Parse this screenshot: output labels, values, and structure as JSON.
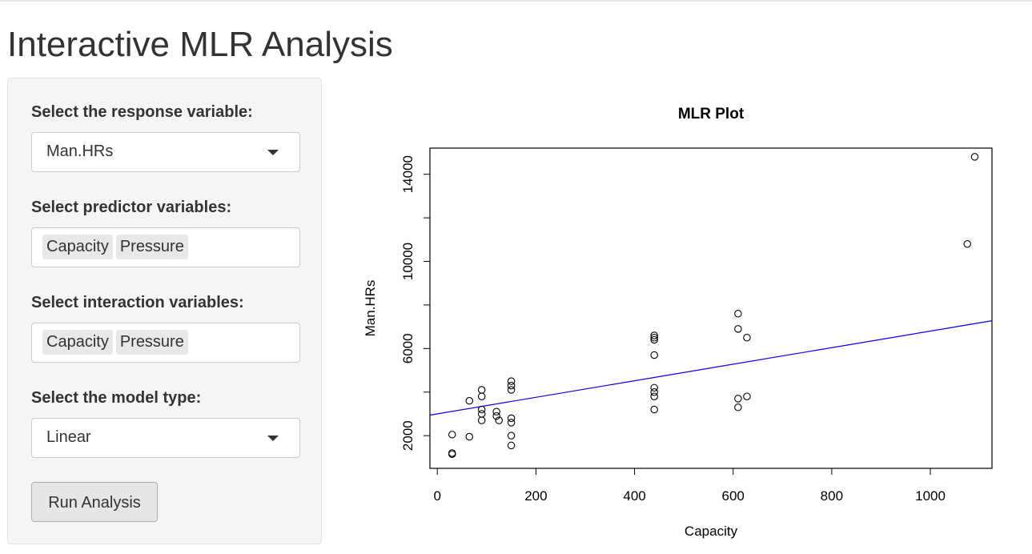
{
  "app": {
    "title": "Interactive MLR Analysis"
  },
  "sidebar": {
    "response_label": "Select the response variable:",
    "response_value": "Man.HRs",
    "predictor_label": "Select predictor variables:",
    "predictor_chips": [
      "Capacity",
      "Pressure"
    ],
    "interaction_label": "Select interaction variables:",
    "interaction_chips": [
      "Capacity",
      "Pressure"
    ],
    "model_label": "Select the model type:",
    "model_value": "Linear",
    "run_button": "Run Analysis"
  },
  "chart_data": {
    "type": "scatter",
    "title": "MLR Plot",
    "xlabel": "Capacity",
    "ylabel": "Man.HRs",
    "xlim": [
      -15,
      1125
    ],
    "ylim": [
      500,
      15200
    ],
    "x_ticks": [
      0,
      200,
      400,
      600,
      800,
      1000
    ],
    "y_ticks": [
      2000,
      6000,
      10000,
      14000
    ],
    "points": [
      [
        30,
        1200
      ],
      [
        30,
        1150
      ],
      [
        30,
        2050
      ],
      [
        65,
        1950
      ],
      [
        65,
        3600
      ],
      [
        90,
        2700
      ],
      [
        90,
        3000
      ],
      [
        90,
        3200
      ],
      [
        90,
        3800
      ],
      [
        90,
        4100
      ],
      [
        120,
        3100
      ],
      [
        120,
        2900
      ],
      [
        125,
        2700
      ],
      [
        150,
        1550
      ],
      [
        150,
        2000
      ],
      [
        150,
        2600
      ],
      [
        150,
        2800
      ],
      [
        150,
        4100
      ],
      [
        150,
        4300
      ],
      [
        150,
        4500
      ],
      [
        440,
        3200
      ],
      [
        440,
        3800
      ],
      [
        440,
        4000
      ],
      [
        440,
        4200
      ],
      [
        440,
        5700
      ],
      [
        440,
        6400
      ],
      [
        440,
        6500
      ],
      [
        440,
        6600
      ],
      [
        610,
        3300
      ],
      [
        610,
        3700
      ],
      [
        610,
        6900
      ],
      [
        610,
        7600
      ],
      [
        628,
        6500
      ],
      [
        628,
        3800
      ],
      [
        1075,
        10800
      ],
      [
        1090,
        14800
      ]
    ],
    "fit_line": {
      "intercept": 3000,
      "slope": 3.8,
      "color": "#0000ee"
    },
    "grid": false
  }
}
